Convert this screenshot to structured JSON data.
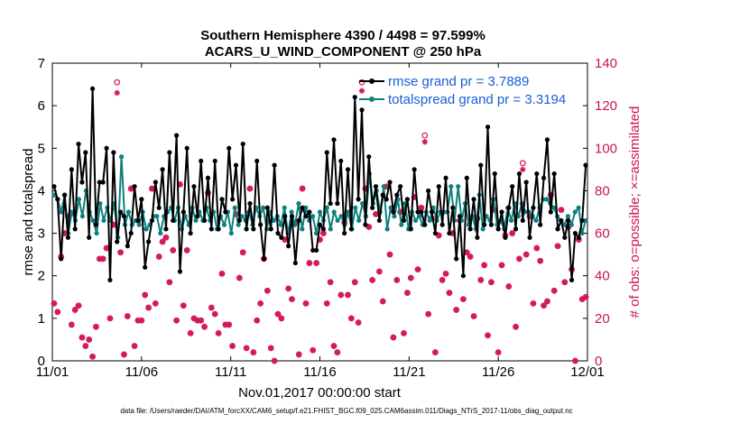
{
  "chart_data": {
    "type": "line",
    "title_line1": "Southern Hemisphere 4390 / 4498 = 97.599%",
    "title_line2": "ACARS_U_WIND_COMPONENT @ 250 hPa",
    "xlabel": "Nov.01,2017 00:00:00 start",
    "ylabel_left": "rmse and totalspread",
    "ylabel_right": "# of obs: o=possible; ×=assimilated",
    "footnote": "data file: /Users/raeder/DAI/ATM_forcXX/CAM6_setup/f.e21.FHIST_BGC.f09_025.CAM6assim.011/Diags_NTrS_2017-11/obs_diag_output.nc",
    "xlim": [
      0,
      30
    ],
    "ylim_left": [
      0,
      7
    ],
    "ylim_right": [
      0,
      140
    ],
    "x_ticks": [
      0,
      5,
      10,
      15,
      20,
      25,
      30
    ],
    "x_tick_labels": [
      "11/01",
      "11/06",
      "11/11",
      "11/16",
      "11/21",
      "11/26",
      "12/01"
    ],
    "y_ticks_left": [
      "0",
      "1",
      "2",
      "3",
      "4",
      "5",
      "6",
      "7"
    ],
    "y_ticks_right": [
      "0",
      "20",
      "40",
      "60",
      "80",
      "100",
      "120",
      "140"
    ],
    "series": [
      {
        "name": "rmse grand pr = 3.7889",
        "color": "#000000",
        "values": [
          4.1,
          3.8,
          2.4,
          3.9,
          2.9,
          4.5,
          3.1,
          5.1,
          4.2,
          4.9,
          2.9,
          6.4,
          3.2,
          4.2,
          4.2,
          5.0,
          1.9,
          4.9,
          2.8,
          3.5,
          3.4,
          2.7,
          3.0,
          4.1,
          3.3,
          3.8,
          2.2,
          2.8,
          3.3,
          4.2,
          3.6,
          4.5,
          3.1,
          4.9,
          3.3,
          5.3,
          2.1,
          3.5,
          5.0,
          3.0,
          4.1,
          3.4,
          4.7,
          3.3,
          4.3,
          3.1,
          4.7,
          3.1,
          3.8,
          3.5,
          5.0,
          3.8,
          4.6,
          3.3,
          5.1,
          3.1,
          3.7,
          3.1,
          4.7,
          3.2,
          2.4,
          3.6,
          3.1,
          4.6,
          3.0,
          2.9,
          3.4,
          2.7,
          3.4,
          2.3,
          3.3,
          3.6,
          3.4,
          3.5,
          2.6,
          2.6,
          3.2,
          3.1,
          4.9,
          3.7,
          5.2,
          3.7,
          4.7,
          3.0,
          4.5,
          3.1,
          6.2,
          3.8,
          5.9,
          3.2,
          4.8,
          3.6,
          4.1,
          3.3,
          3.9,
          3.8,
          4.2,
          3.5,
          3.9,
          4.1,
          3.3,
          3.8,
          3.1,
          4.5,
          3.5,
          3.5,
          3.2,
          4.0,
          3.5,
          3.0,
          4.1,
          3.2,
          4.3,
          3.0,
          3.6,
          2.4,
          3.4,
          2.0,
          4.3,
          3.1,
          3.8,
          2.9,
          4.6,
          3.2,
          5.5,
          3.2,
          4.4,
          3.1,
          3.5,
          2.9,
          3.6,
          4.1,
          3.1,
          4.4,
          3.3,
          4.2,
          2.9,
          3.6,
          4.4,
          3.2,
          4.3,
          5.2,
          3.5,
          4.4,
          3.1,
          3.3,
          2.9,
          3.3,
          1.9,
          3.0,
          2.9,
          3.3,
          4.6
        ]
      },
      {
        "name": "totalspread grand pr = 3.3194",
        "color": "#0e8080",
        "values": [
          3.9,
          3.8,
          3.5,
          3.9,
          3.0,
          3.5,
          3.3,
          3.8,
          3.4,
          4.0,
          3.5,
          3.3,
          3.0,
          3.7,
          3.3,
          3.6,
          3.3,
          3.7,
          2.9,
          4.8,
          3.2,
          3.5,
          3.2,
          3.3,
          3.2,
          3.5,
          3.1,
          3.2,
          3.4,
          3.4,
          3.0,
          3.4,
          3.5,
          3.6,
          3.3,
          3.6,
          3.1,
          3.4,
          3.2,
          3.6,
          3.3,
          3.5,
          3.3,
          3.6,
          3.3,
          3.5,
          3.1,
          3.4,
          3.2,
          3.5,
          3.0,
          3.6,
          3.2,
          3.4,
          3.3,
          3.5,
          3.2,
          3.6,
          3.4,
          3.6,
          3.1,
          3.5,
          3.3,
          3.4,
          3.2,
          3.6,
          3.0,
          3.5,
          3.2,
          3.7,
          3.1,
          3.6,
          3.3,
          3.4,
          3.0,
          3.5,
          3.3,
          3.6,
          3.1,
          3.5,
          3.3,
          3.4,
          3.2,
          3.5,
          3.1,
          3.6,
          3.3,
          3.7,
          3.4,
          4.4,
          3.7,
          4.0,
          3.5,
          4.1,
          3.1,
          3.6,
          3.4,
          3.8,
          3.2,
          3.7,
          3.1,
          3.5,
          3.3,
          3.4,
          3.2,
          3.5,
          3.3,
          3.6,
          3.3,
          3.5,
          3.5,
          3.5,
          4.1,
          3.3,
          4.1,
          3.3,
          3.7,
          3.2,
          3.4,
          3.1,
          3.9,
          3.1,
          3.4,
          3.3,
          3.8,
          3.2,
          3.3,
          3.1,
          3.6,
          3.3,
          3.7,
          3.4,
          3.7,
          3.5,
          3.5,
          3.4,
          3.3,
          3.6,
          3.8,
          3.8,
          3.7,
          3.6,
          3.4,
          3.3,
          3.2,
          3.4,
          3.2,
          3.5,
          3.6,
          3.0,
          3.3
        ]
      }
    ],
    "obs_possible": [
      27,
      23,
      49,
      60,
      68,
      17,
      24,
      26,
      11,
      7,
      10,
      2,
      16,
      48,
      48,
      53,
      20,
      64,
      131,
      51,
      3,
      21,
      81,
      7,
      19,
      19,
      31,
      25,
      81,
      27,
      49,
      56,
      58,
      37,
      52,
      19,
      83,
      26,
      52,
      13,
      20,
      19,
      19,
      16,
      79,
      25,
      22,
      13,
      41,
      17,
      17,
      7,
      69,
      39,
      51,
      6,
      81,
      4,
      19,
      27,
      48,
      33,
      6,
      0,
      22,
      20,
      57,
      34,
      29,
      65,
      3,
      81,
      27,
      46,
      5,
      46,
      57,
      60,
      27,
      37,
      7,
      4,
      31,
      65,
      31,
      20,
      37,
      18,
      131,
      81,
      63,
      38,
      69,
      42,
      28,
      82,
      50,
      11,
      38,
      70,
      13,
      32,
      39,
      77,
      43,
      72,
      106,
      22,
      67,
      4,
      59,
      38,
      41,
      32,
      60,
      24,
      66,
      29,
      51,
      49,
      21,
      67,
      38,
      45,
      12,
      37,
      71,
      4,
      45,
      59,
      35,
      60,
      16,
      48,
      93,
      50,
      68,
      27,
      53,
      47,
      26,
      28,
      78,
      33,
      54,
      71,
      37,
      63,
      43,
      0,
      57,
      29,
      30
    ],
    "obs_assimilated": [
      27,
      23,
      49,
      60,
      68,
      17,
      24,
      26,
      11,
      7,
      10,
      2,
      16,
      48,
      48,
      53,
      20,
      64,
      126,
      51,
      3,
      21,
      81,
      7,
      19,
      19,
      31,
      25,
      81,
      27,
      49,
      56,
      58,
      37,
      52,
      19,
      83,
      26,
      52,
      13,
      20,
      19,
      19,
      16,
      79,
      25,
      22,
      13,
      41,
      17,
      17,
      7,
      69,
      39,
      51,
      6,
      81,
      4,
      19,
      27,
      48,
      33,
      6,
      0,
      22,
      20,
      57,
      34,
      29,
      65,
      3,
      81,
      27,
      46,
      5,
      46,
      57,
      60,
      27,
      37,
      7,
      4,
      31,
      65,
      31,
      20,
      37,
      18,
      127,
      81,
      63,
      38,
      69,
      42,
      28,
      82,
      50,
      11,
      38,
      70,
      13,
      32,
      39,
      77,
      43,
      72,
      103,
      22,
      67,
      4,
      59,
      38,
      41,
      32,
      60,
      24,
      66,
      29,
      51,
      49,
      21,
      67,
      38,
      45,
      12,
      37,
      71,
      4,
      45,
      59,
      35,
      60,
      16,
      48,
      90,
      50,
      68,
      27,
      53,
      47,
      26,
      28,
      78,
      33,
      54,
      71,
      37,
      63,
      43,
      0,
      57,
      29,
      30
    ],
    "obs_color": "#d41557"
  }
}
